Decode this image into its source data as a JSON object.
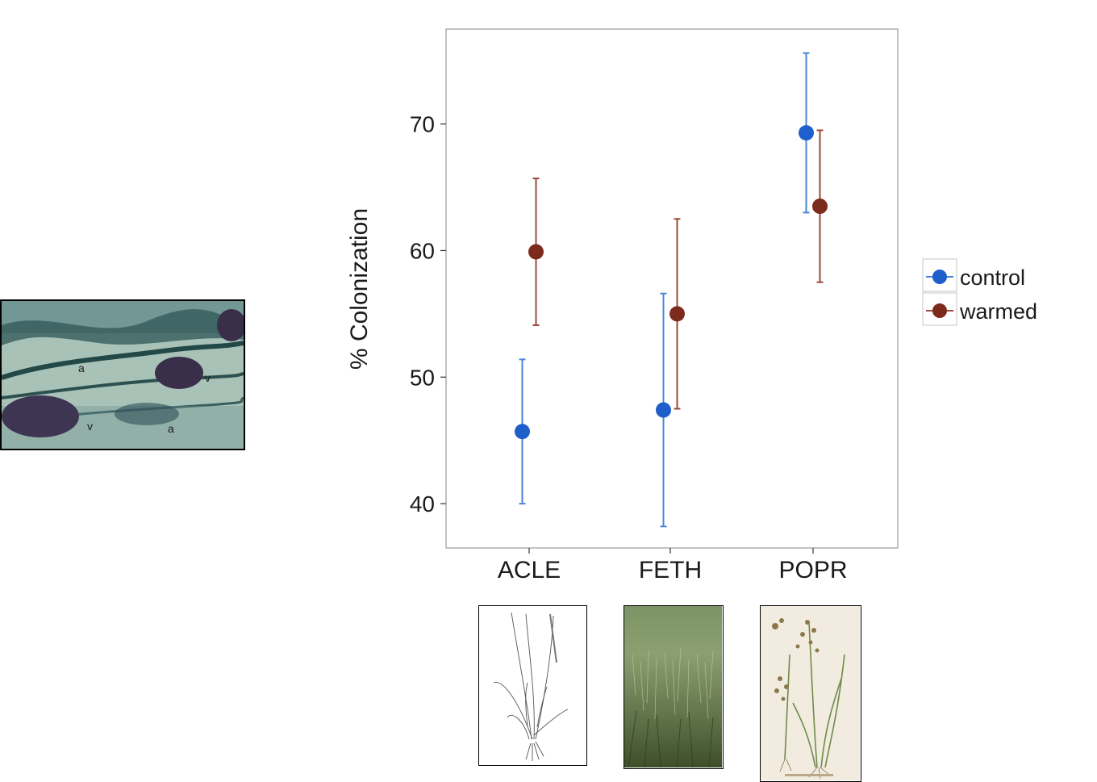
{
  "chart_data": {
    "type": "scatter",
    "categories": [
      "ACLE",
      "FETH",
      "POPR"
    ],
    "ylabel": "% Colonization",
    "xlabel": "",
    "ylim": [
      36.5,
      77.5
    ],
    "yticks": [
      40,
      50,
      60,
      70
    ],
    "grid": false,
    "legend_position": "right",
    "series": [
      {
        "name": "control",
        "color": "#1f5fcc",
        "err_color": "#4a86d8",
        "values": [
          45.7,
          47.4,
          69.3
        ],
        "lower": [
          40.0,
          38.2,
          63.0
        ],
        "upper": [
          51.4,
          56.6,
          75.6
        ]
      },
      {
        "name": "warmed",
        "color": "#7b2a1c",
        "err_color": "#9a4a3a",
        "values": [
          59.9,
          55.0,
          63.5
        ],
        "lower": [
          54.1,
          47.5,
          57.5
        ],
        "upper": [
          65.7,
          62.5,
          69.5
        ]
      }
    ]
  },
  "images": {
    "micrograph": {
      "labels": [
        "a",
        "v",
        "v",
        "a"
      ]
    },
    "thumbnails": [
      {
        "species": "ACLE",
        "kind": "line-drawing"
      },
      {
        "species": "FETH",
        "kind": "photo"
      },
      {
        "species": "POPR",
        "kind": "botanical-plate"
      }
    ]
  }
}
